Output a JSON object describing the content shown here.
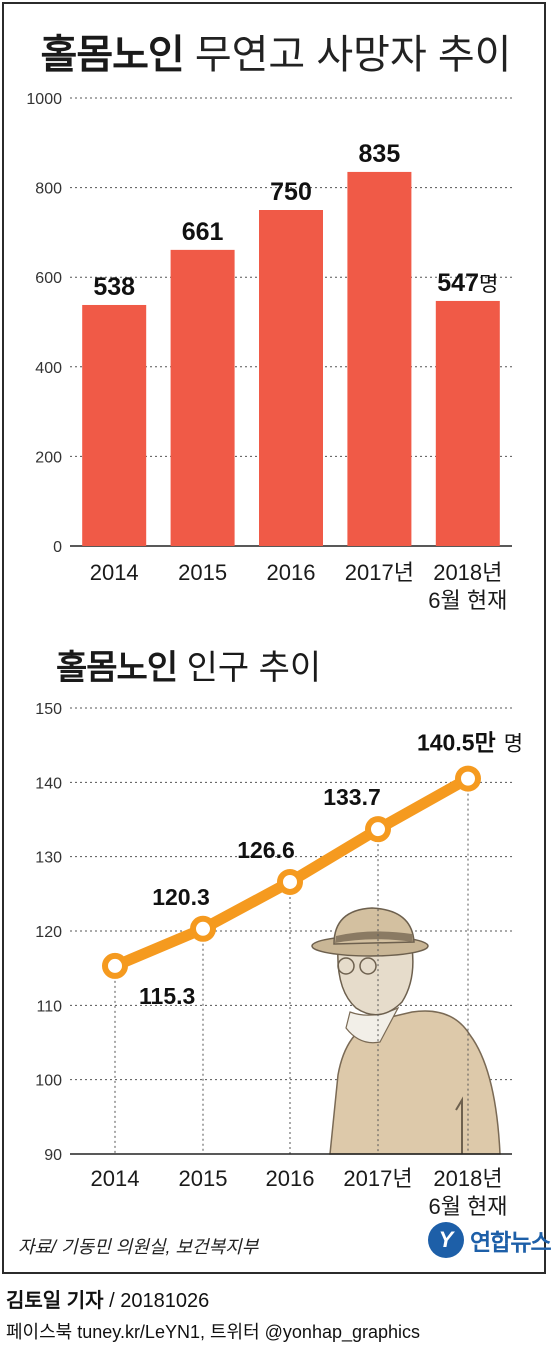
{
  "title1": {
    "bold": "홀몸노인",
    "rest": " 무연고 사망자 추이"
  },
  "title2": {
    "bold": "홀몸노인",
    "rest": " 인구 추이"
  },
  "source": "자료/ 기동민 의원실, 보건복지부",
  "logo": {
    "mark": "Y",
    "text": "연합뉴스"
  },
  "byline": {
    "reporter": "김토일 기자",
    "date": " / 20181026"
  },
  "social": "페이스북 tuney.kr/LeYN1, 트위터 @yonhap_graphics",
  "colors": {
    "bar": "#f05a47",
    "line": "#f59a1f",
    "marker_fill": "#ffffff",
    "grid": "#555555"
  },
  "illustration": "elderly-man-with-hat",
  "chart_data": [
    {
      "type": "bar",
      "title": "홀몸노인 무연고 사망자 추이",
      "categories": [
        "2014",
        "2015",
        "2016",
        "2017년",
        "2018년\n6월 현재"
      ],
      "values": [
        538,
        661,
        750,
        835,
        547
      ],
      "value_labels": [
        "538",
        "661",
        "750",
        "835",
        "547"
      ],
      "unit": "명",
      "yticks": [
        "0",
        "200",
        "400",
        "600",
        "800",
        "1000"
      ],
      "ylim": [
        0,
        1000
      ],
      "grid": true
    },
    {
      "type": "line",
      "title": "홀몸노인 인구 추이",
      "categories": [
        "2014",
        "2015",
        "2016",
        "2017년",
        "2018년\n6월 현재"
      ],
      "values": [
        115.3,
        120.3,
        126.6,
        133.7,
        140.5
      ],
      "value_labels": [
        "115.3",
        "120.3",
        "126.6",
        "133.7",
        "140.5만"
      ],
      "unit": "명",
      "yticks": [
        "90",
        "100",
        "110",
        "120",
        "130",
        "140",
        "150"
      ],
      "ylim": [
        90,
        150
      ],
      "grid": true
    }
  ]
}
